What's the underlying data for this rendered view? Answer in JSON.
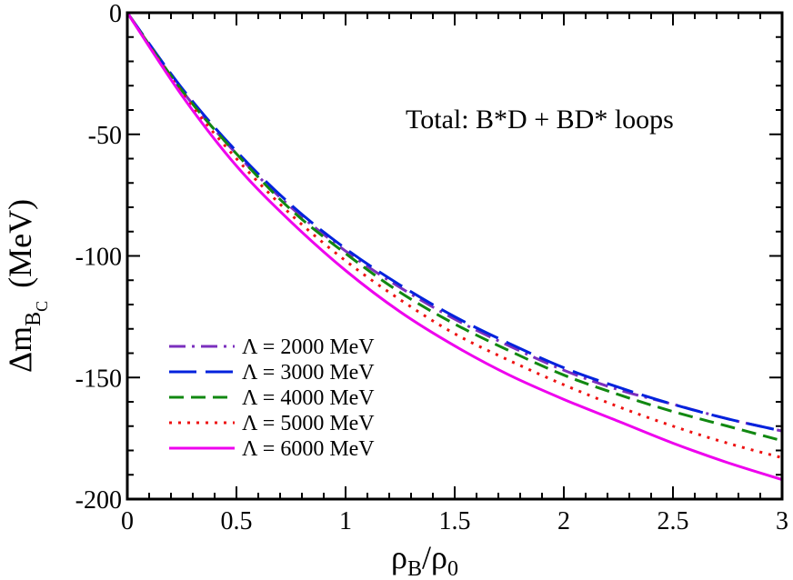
{
  "chart_data": {
    "type": "line",
    "title": "",
    "annotation": "Total: B*D + BD* loops",
    "xlabel": "ρ",
    "xlabel_sub1": "B",
    "xlabel_mid": "/ρ",
    "xlabel_sub2": "0",
    "ylabel": "Δm",
    "ylabel_sub": "B",
    "ylabel_subsub": "C",
    "ylabel_unit": "(MeV)",
    "xlim": [
      0,
      3
    ],
    "ylim": [
      -200,
      0
    ],
    "xticks": [
      0,
      0.5,
      1,
      1.5,
      2,
      2.5,
      3
    ],
    "xtick_labels": [
      "0",
      "0.5",
      "1",
      "1.5",
      "2",
      "2.5",
      "3"
    ],
    "yticks": [
      0,
      -50,
      -100,
      -150,
      -200
    ],
    "ytick_labels": [
      "0",
      "-50",
      "-100",
      "-150",
      "-200"
    ],
    "legend_position": "bottom-left",
    "series": [
      {
        "name": "Λ = 2000 MeV",
        "color": "#7b2fbe",
        "dash": "dashdot",
        "x": [
          0,
          0.25,
          0.5,
          0.75,
          1,
          1.25,
          1.5,
          1.75,
          2,
          2.25,
          2.5,
          2.75,
          3
        ],
        "y": [
          0,
          -32,
          -58,
          -80,
          -98,
          -113,
          -126,
          -137,
          -147,
          -155,
          -161,
          -167,
          -172
        ]
      },
      {
        "name": "Λ = 3000 MeV",
        "color": "#0022dd",
        "dash": "longdash",
        "x": [
          0,
          0.25,
          0.5,
          0.75,
          1,
          1.25,
          1.5,
          1.75,
          2,
          2.25,
          2.5,
          2.75,
          3
        ],
        "y": [
          0,
          -31,
          -57,
          -79,
          -97,
          -112,
          -125,
          -136,
          -146,
          -154,
          -161,
          -167,
          -172
        ]
      },
      {
        "name": "Λ = 4000 MeV",
        "color": "#118811",
        "dash": "dash",
        "x": [
          0,
          0.25,
          0.5,
          0.75,
          1,
          1.25,
          1.5,
          1.75,
          2,
          2.25,
          2.5,
          2.75,
          3
        ],
        "y": [
          0,
          -32,
          -58,
          -81,
          -99,
          -115,
          -128,
          -139,
          -149,
          -157,
          -164,
          -170,
          -176
        ]
      },
      {
        "name": "Λ = 5000 MeV",
        "color": "#ee1111",
        "dash": "dot",
        "x": [
          0,
          0.25,
          0.5,
          0.75,
          1,
          1.25,
          1.5,
          1.75,
          2,
          2.25,
          2.5,
          2.75,
          3
        ],
        "y": [
          0,
          -33,
          -60,
          -83,
          -102,
          -118,
          -132,
          -143,
          -153,
          -162,
          -170,
          -177,
          -183
        ]
      },
      {
        "name": "Λ = 6000 MeV",
        "color": "#ee00ee",
        "dash": "solid",
        "x": [
          0,
          0.25,
          0.5,
          0.75,
          1,
          1.25,
          1.5,
          1.75,
          2,
          2.25,
          2.5,
          2.75,
          3
        ],
        "y": [
          0,
          -34,
          -63,
          -86,
          -106,
          -123,
          -137,
          -149,
          -159,
          -168,
          -177,
          -185,
          -192
        ]
      }
    ]
  }
}
